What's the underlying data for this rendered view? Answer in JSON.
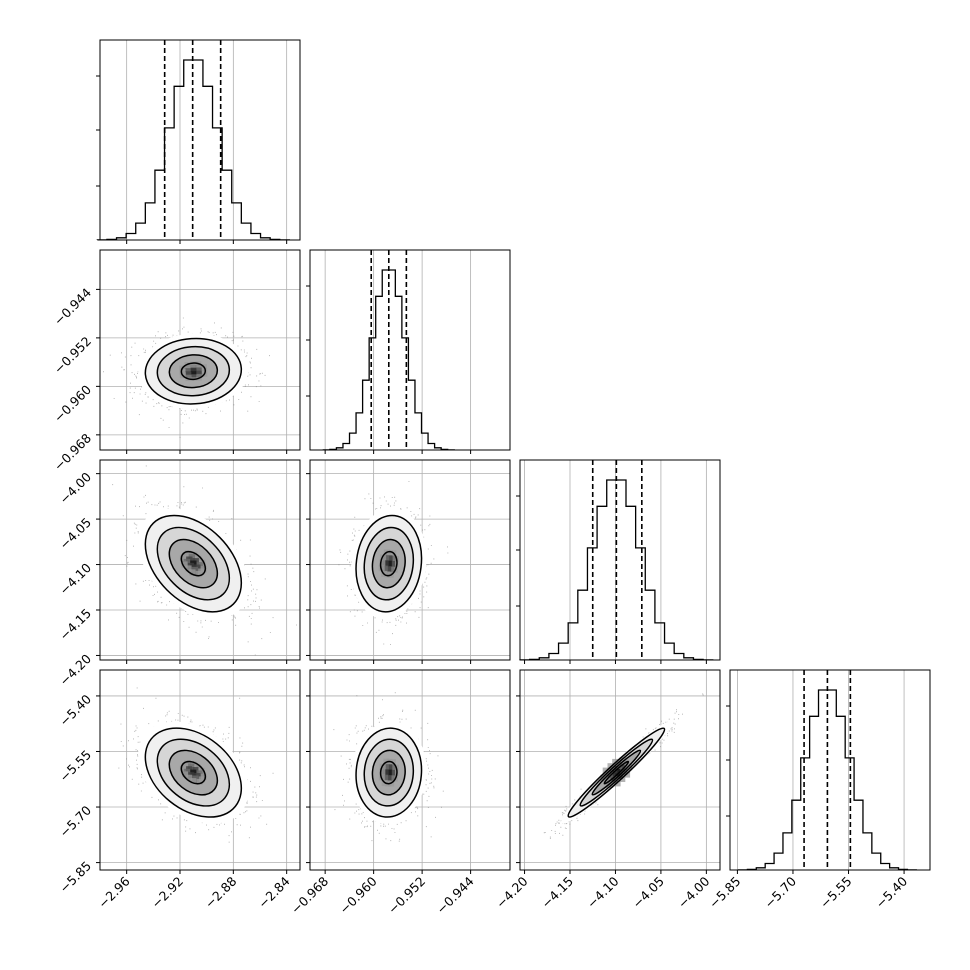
{
  "chart_data": {
    "type": "corner",
    "parameters": [
      {
        "mean": -2.91,
        "sd": 0.018,
        "range": [
          -2.98,
          -2.83
        ],
        "quantiles": [
          -2.9315,
          -2.9105,
          -2.8895
        ],
        "ticks": [
          -2.96,
          -2.92,
          -2.88,
          -2.84
        ],
        "tick_labels": [
          "−2.96",
          "−2.92",
          "−2.88",
          "−2.84"
        ]
      },
      {
        "mean": -0.9575,
        "sd": 0.0027,
        "range": [
          -0.9705,
          -0.9375
        ],
        "quantiles": [
          -0.9604,
          -0.9575,
          -0.9546
        ],
        "ticks": [
          -0.968,
          -0.96,
          -0.952,
          -0.944
        ],
        "tick_labels": [
          "−0.968",
          "−0.960",
          "−0.952",
          "−0.944"
        ]
      },
      {
        "mean": -4.099,
        "sd": 0.0265,
        "range": [
          -4.205,
          -3.985
        ],
        "quantiles": [
          -4.125,
          -4.099,
          -4.071
        ],
        "ticks": [
          -4.2,
          -4.15,
          -4.1,
          -4.05,
          -4.0
        ],
        "tick_labels": [
          "−4.20",
          "−4.15",
          "−4.10",
          "−4.05",
          "−4.00"
        ]
      },
      {
        "mean": -5.607,
        "sd": 0.06,
        "range": [
          -5.87,
          -5.33
        ],
        "quantiles": [
          -5.67,
          -5.607,
          -5.545
        ],
        "ticks": [
          -5.85,
          -5.7,
          -5.55,
          -5.4
        ],
        "tick_labels": [
          "−5.85",
          "−5.70",
          "−5.55",
          "−5.40"
        ]
      }
    ],
    "correlations": [
      [
        1,
        0.05,
        -0.4,
        -0.35
      ],
      [
        0.05,
        1,
        0.1,
        0.05
      ],
      [
        -0.4,
        0.1,
        1,
        0.97
      ],
      [
        -0.35,
        0.05,
        0.97,
        1
      ]
    ],
    "histogram_bins": 20,
    "contour_levels_sigma": [
      0.5,
      1.0,
      1.5,
      2.0
    ],
    "grid": true,
    "colors": {
      "line": "#000000",
      "scatter": "#7f7f7f",
      "grid": "#b0b0b0"
    }
  }
}
